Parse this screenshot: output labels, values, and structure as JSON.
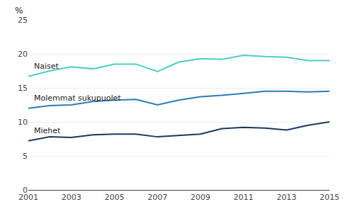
{
  "chart_data": {
    "type": "line",
    "ylabel": "%",
    "x": [
      2001,
      2002,
      2003,
      2004,
      2005,
      2006,
      2007,
      2008,
      2009,
      2010,
      2011,
      2012,
      2013,
      2014,
      2015
    ],
    "series": [
      {
        "name": "Naiset",
        "color": "#4ecdc4",
        "values": [
          16.7,
          17.5,
          18.1,
          17.8,
          18.5,
          18.5,
          17.4,
          18.8,
          19.3,
          19.2,
          19.8,
          19.6,
          19.5,
          19.0,
          19.0
        ]
      },
      {
        "name": "Molemmat sukupuolet",
        "color": "#2b7cb5",
        "values": [
          12.0,
          12.4,
          12.5,
          13.0,
          13.2,
          13.3,
          12.5,
          13.2,
          13.7,
          13.9,
          14.2,
          14.5,
          14.5,
          14.4,
          14.5
        ]
      },
      {
        "name": "Miehet",
        "color": "#1a3a5c",
        "values": [
          7.2,
          7.8,
          7.7,
          8.1,
          8.2,
          8.2,
          7.8,
          8.0,
          8.2,
          9.0,
          9.2,
          9.1,
          8.8,
          9.5,
          10.0
        ]
      }
    ],
    "xlim": [
      2001,
      2015
    ],
    "xticks": [
      2001,
      2003,
      2005,
      2007,
      2009,
      2011,
      2013,
      2015
    ],
    "ylim": [
      0,
      25
    ],
    "yticks": [
      0,
      5,
      10,
      15,
      20,
      25
    ],
    "grid": true
  }
}
